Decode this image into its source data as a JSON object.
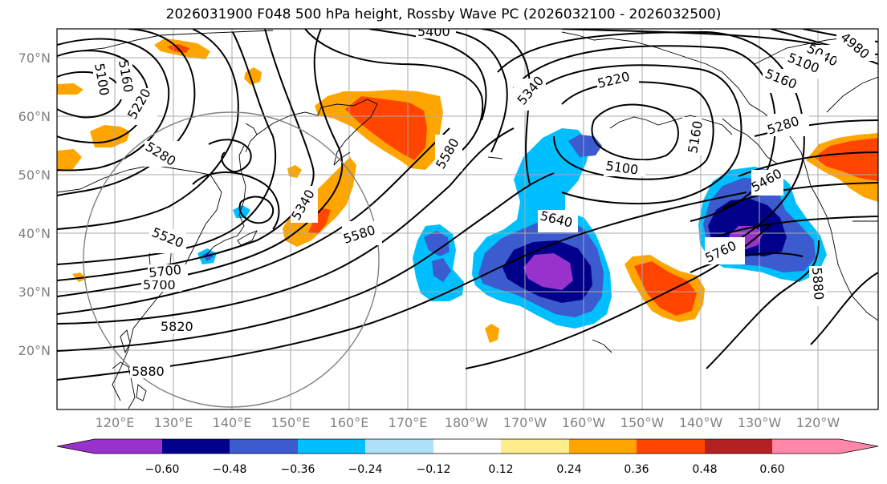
{
  "title": "2026031900 F048 500 hPa height, Rossby Wave PC (2026032100 - 2026032500)",
  "lat_labels": [
    "70°N",
    "60°N",
    "50°N",
    "40°N",
    "30°N",
    "20°N"
  ],
  "lon_labels": [
    "120°E",
    "130°E",
    "140°E",
    "150°E",
    "160°E",
    "170°E",
    "180°W",
    "170°W",
    "160°W",
    "150°W",
    "140°W",
    "130°W",
    "120°W"
  ],
  "contour_labels": [
    {
      "id": "c5100a",
      "text": "5100"
    },
    {
      "id": "c5160a",
      "text": "5160"
    },
    {
      "id": "c5220a",
      "text": "5220"
    },
    {
      "id": "c5280a",
      "text": "5280"
    },
    {
      "id": "c5400",
      "text": "5400"
    },
    {
      "id": "c5340a",
      "text": "5340"
    },
    {
      "id": "c5580a",
      "text": "5580"
    },
    {
      "id": "c5520",
      "text": "5520"
    },
    {
      "id": "c5700a",
      "text": "5700"
    },
    {
      "id": "c5820",
      "text": "5820"
    },
    {
      "id": "c5880a",
      "text": "5880"
    },
    {
      "id": "c5340b",
      "text": "5340"
    },
    {
      "id": "c5580b",
      "text": "5580"
    },
    {
      "id": "c5640",
      "text": "5640"
    },
    {
      "id": "c5220b",
      "text": "5220"
    },
    {
      "id": "c5100b",
      "text": "5100"
    },
    {
      "id": "c5160b",
      "text": "5160"
    },
    {
      "id": "c5280b",
      "text": "5280"
    },
    {
      "id": "c5040",
      "text": "5040"
    },
    {
      "id": "c5100c",
      "text": "5100"
    },
    {
      "id": "c5160c",
      "text": "5160"
    },
    {
      "id": "c4980",
      "text": "4980"
    },
    {
      "id": "c5460",
      "text": "5460"
    },
    {
      "id": "c5760",
      "text": "5760"
    },
    {
      "id": "c5880b",
      "text": "5880"
    },
    {
      "id": "c5700b",
      "text": "5700"
    }
  ],
  "colorbar": {
    "tick_labels": [
      "−0.60",
      "−0.48",
      "−0.36",
      "−0.24",
      "−0.12",
      "0.12",
      "0.24",
      "0.36",
      "0.48",
      "0.60"
    ],
    "colors": [
      "#9932cc",
      "#00008b",
      "#3b5bcf",
      "#00bfff",
      "#aee0fa",
      "#ffffff",
      "#ffec8b",
      "#ffa500",
      "#ff4500",
      "#b22222",
      "#ff88aa"
    ]
  }
}
